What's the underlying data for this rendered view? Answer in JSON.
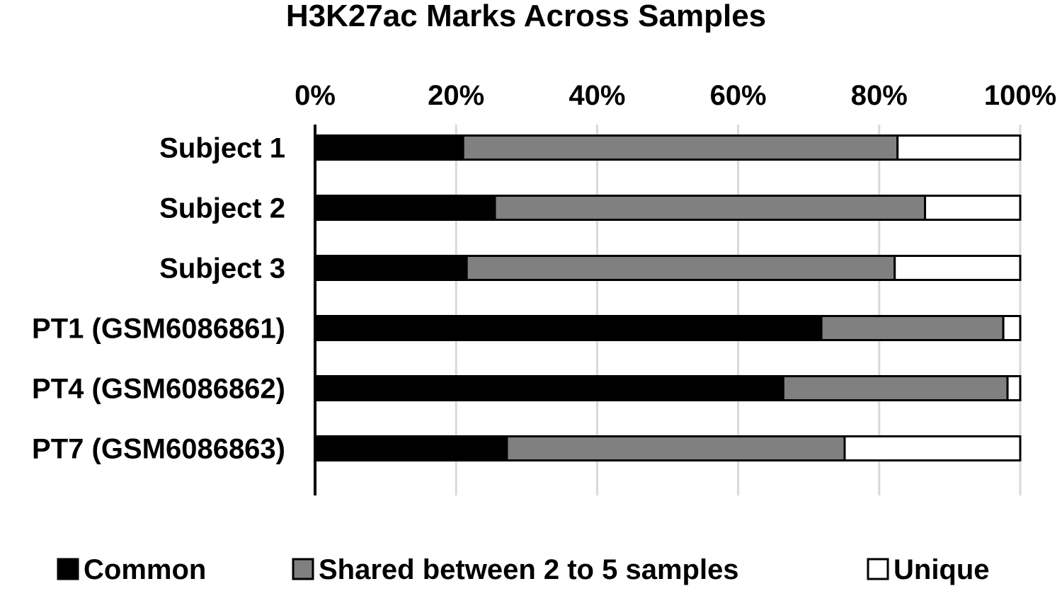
{
  "chart_data": {
    "type": "bar",
    "orientation": "horizontal",
    "stacking": "percent",
    "title": "H3K27ac Marks Across Samples",
    "xlabel": "",
    "ylabel": "",
    "xlim": [
      0,
      100
    ],
    "x_ticks": [
      "0%",
      "20%",
      "40%",
      "60%",
      "80%",
      "100%"
    ],
    "x_tick_values": [
      0,
      20,
      40,
      60,
      80,
      100
    ],
    "x_axis_position": "top",
    "grid": true,
    "legend_position": "bottom",
    "categories": [
      "Subject 1",
      "Subject 2",
      "Subject 3",
      "PT1 (GSM6086861)",
      "PT4 (GSM6086862)",
      "PT7 (GSM6086863)"
    ],
    "series": [
      {
        "name": "Common",
        "color": "#000000",
        "values": [
          21,
          25.5,
          21.5,
          71.8,
          66.4,
          27.2
        ]
      },
      {
        "name": "Shared between 2 to 5 samples",
        "color": "#808080",
        "values": [
          61.6,
          61,
          60.7,
          25.8,
          31.8,
          47.9
        ]
      },
      {
        "name": "Unique",
        "color": "#ffffff",
        "values": [
          17.4,
          13.5,
          17.8,
          2.4,
          1.8,
          24.9
        ]
      }
    ]
  }
}
